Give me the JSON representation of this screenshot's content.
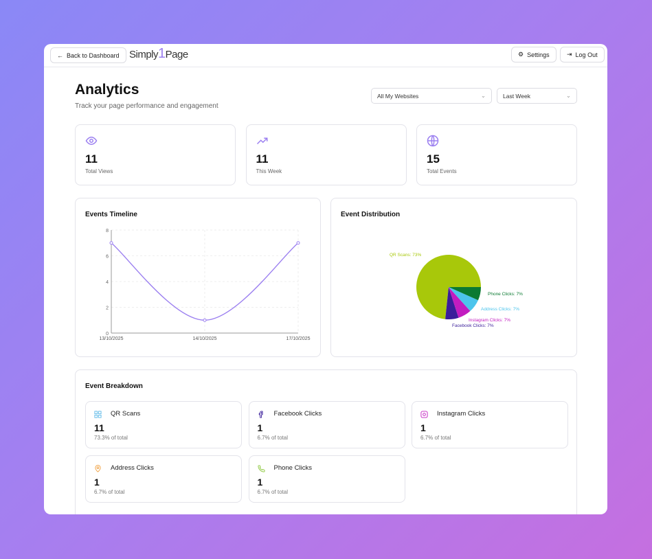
{
  "header": {
    "back_label": "Back to Dashboard",
    "logo": "Simply1Page",
    "settings_label": "Settings",
    "logout_label": "Log Out"
  },
  "page": {
    "title": "Analytics",
    "subtitle": "Track your page performance and engagement"
  },
  "filters": {
    "website": "All My Websites",
    "period": "Last Week"
  },
  "stats": [
    {
      "icon": "eye-icon",
      "value": "11",
      "label": "Total Views"
    },
    {
      "icon": "trending-up-icon",
      "value": "11",
      "label": "This Week"
    },
    {
      "icon": "globe-icon",
      "value": "15",
      "label": "Total Events"
    }
  ],
  "accent": "#9b7ff0",
  "timeline": {
    "title": "Events Timeline"
  },
  "distribution": {
    "title": "Event Distribution"
  },
  "chart_data": [
    {
      "type": "line",
      "title": "Events Timeline",
      "categories": [
        "13/10/2025",
        "14/10/2025",
        "17/10/2025"
      ],
      "values": [
        7,
        1,
        7
      ],
      "ylim": [
        0,
        8
      ],
      "yticks": [
        0,
        2,
        4,
        6,
        8
      ],
      "grid": true,
      "color": "#9b7ff0"
    },
    {
      "type": "pie",
      "title": "Event Distribution",
      "slices": [
        {
          "label": "QR Scans: 73%",
          "name": "QR Scans",
          "value": 11,
          "color": "#a8c80a"
        },
        {
          "label": "Facebook Clicks: 7%",
          "name": "Facebook Clicks",
          "value": 1,
          "color": "#3a1d9a"
        },
        {
          "label": "Instagram Clicks: 7%",
          "name": "Instagram Clicks",
          "value": 1,
          "color": "#c21cc0"
        },
        {
          "label": "Address Clicks: 7%",
          "name": "Address Clicks",
          "value": 1,
          "color": "#4cc4ec"
        },
        {
          "label": "Phone Clicks: 7%",
          "name": "Phone Clicks",
          "value": 1,
          "color": "#0b7a32"
        }
      ]
    }
  ],
  "breakdown": {
    "title": "Event Breakdown",
    "items": [
      {
        "icon": "qr-code-icon",
        "label": "QR Scans",
        "value": "11",
        "pct": "73.3% of total",
        "color": "#5ab8e8"
      },
      {
        "icon": "facebook-icon",
        "label": "Facebook Clicks",
        "value": "1",
        "pct": "6.7% of total",
        "color": "#3a1d9a"
      },
      {
        "icon": "instagram-icon",
        "label": "Instagram Clicks",
        "value": "1",
        "pct": "6.7% of total",
        "color": "#c21cc0"
      },
      {
        "icon": "map-pin-icon",
        "label": "Address Clicks",
        "value": "1",
        "pct": "6.7% of total",
        "color": "#f0a040"
      },
      {
        "icon": "phone-icon",
        "label": "Phone Clicks",
        "value": "1",
        "pct": "6.7% of total",
        "color": "#8cc83c"
      }
    ]
  }
}
